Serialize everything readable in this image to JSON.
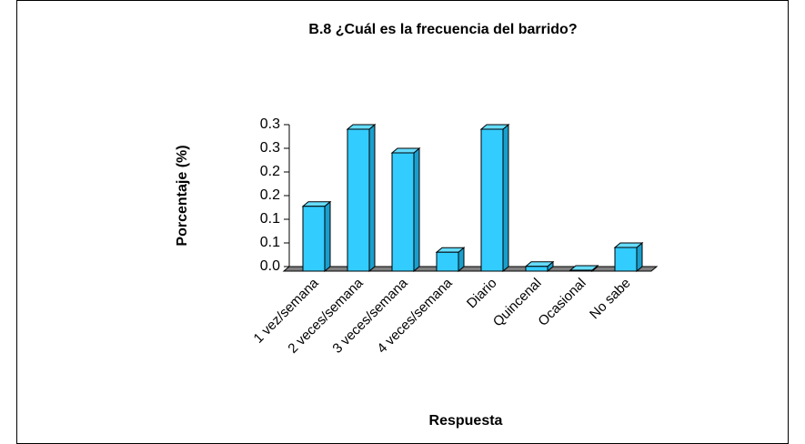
{
  "chart_data": {
    "type": "bar",
    "title": "B.8 ¿Cuál es la frecuencia del barrido?",
    "x_label": "Respuesta",
    "y_label": "Porcentaje (%)",
    "categories": [
      "1 vez/semana",
      "2 veces/semana",
      "3 veces/semana",
      "4 veces/semana",
      "Diario",
      "Quincenal",
      "Ocasional",
      "No sabe"
    ],
    "values": [
      0.137,
      0.3,
      0.25,
      0.04,
      0.3,
      0.01,
      0.002,
      0.05
    ],
    "color": "#33ccff",
    "ylim": [
      0,
      0.3
    ],
    "yticks": [
      {
        "value": 0,
        "label": "0.0"
      },
      {
        "value": 0.05,
        "label": "0.1"
      },
      0.1,
      {
        "value": 0.15,
        "label": "0.2"
      },
      0.2,
      {
        "value": 0.25,
        "label": "0.3"
      },
      0.3
    ]
  }
}
